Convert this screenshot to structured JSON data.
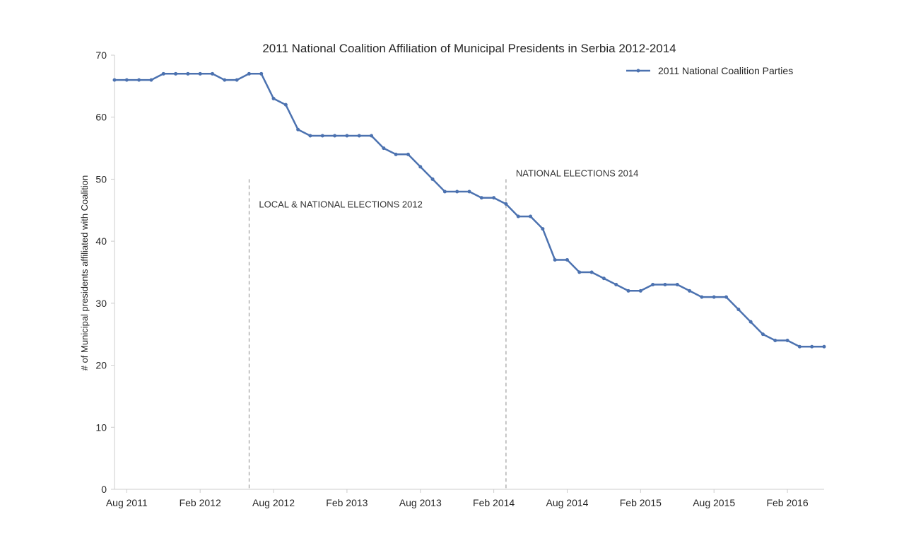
{
  "chart_data": {
    "type": "line",
    "title": "2011 National Coalition Affiliation of Municipal Presidents in Serbia 2012-2014",
    "xlabel": "",
    "ylabel": "# of Municipal presidents affiliated with Coalition",
    "ylim": [
      0,
      70
    ],
    "yticks": [
      0,
      10,
      20,
      30,
      40,
      50,
      60,
      70
    ],
    "xlim": [
      "2011-07",
      "2016-05"
    ],
    "xticks": [
      {
        "date": "2011-08",
        "label": "Aug 2011"
      },
      {
        "date": "2012-02",
        "label": "Feb 2012"
      },
      {
        "date": "2012-08",
        "label": "Aug 2012"
      },
      {
        "date": "2013-02",
        "label": "Feb 2013"
      },
      {
        "date": "2013-08",
        "label": "Aug 2013"
      },
      {
        "date": "2014-02",
        "label": "Feb 2014"
      },
      {
        "date": "2014-08",
        "label": "Aug 2014"
      },
      {
        "date": "2015-02",
        "label": "Feb 2015"
      },
      {
        "date": "2015-08",
        "label": "Aug 2015"
      },
      {
        "date": "2016-02",
        "label": "Feb 2016"
      }
    ],
    "grid": false,
    "legend_position": "top-right",
    "color": "#4c72b0",
    "series": [
      {
        "name": "2011 National Coalition Parties",
        "x": [
          "2011-07",
          "2011-08",
          "2011-09",
          "2011-10",
          "2011-11",
          "2011-12",
          "2012-01",
          "2012-02",
          "2012-03",
          "2012-04",
          "2012-05",
          "2012-06",
          "2012-07",
          "2012-08",
          "2012-09",
          "2012-10",
          "2012-11",
          "2012-12",
          "2013-01",
          "2013-02",
          "2013-03",
          "2013-04",
          "2013-05",
          "2013-06",
          "2013-07",
          "2013-08",
          "2013-09",
          "2013-10",
          "2013-11",
          "2013-12",
          "2014-01",
          "2014-02",
          "2014-03",
          "2014-04",
          "2014-05",
          "2014-06",
          "2014-07",
          "2014-08",
          "2014-09",
          "2014-10",
          "2014-11",
          "2014-12",
          "2015-01",
          "2015-02",
          "2015-03",
          "2015-04",
          "2015-05",
          "2015-06",
          "2015-07",
          "2015-08",
          "2015-09",
          "2015-10",
          "2015-11",
          "2015-12",
          "2016-01",
          "2016-02",
          "2016-03",
          "2016-04",
          "2016-05"
        ],
        "values": [
          66,
          66,
          66,
          66,
          67,
          67,
          67,
          67,
          67,
          66,
          66,
          67,
          67,
          63,
          62,
          58,
          57,
          57,
          57,
          57,
          57,
          57,
          55,
          54,
          54,
          52,
          50,
          48,
          48,
          48,
          47,
          47,
          46,
          44,
          44,
          42,
          37,
          37,
          35,
          35,
          34,
          33,
          32,
          32,
          33,
          33,
          33,
          32,
          31,
          31,
          31,
          29,
          27,
          25,
          24,
          24,
          23,
          23,
          23
        ]
      }
    ],
    "annotations": [
      {
        "date": "2012-06",
        "label": "LOCAL & NATIONAL ELECTIONS 2012",
        "label_y": 46
      },
      {
        "date": "2014-03",
        "label": "NATIONAL ELECTIONS 2014",
        "label_y": 51
      }
    ]
  }
}
